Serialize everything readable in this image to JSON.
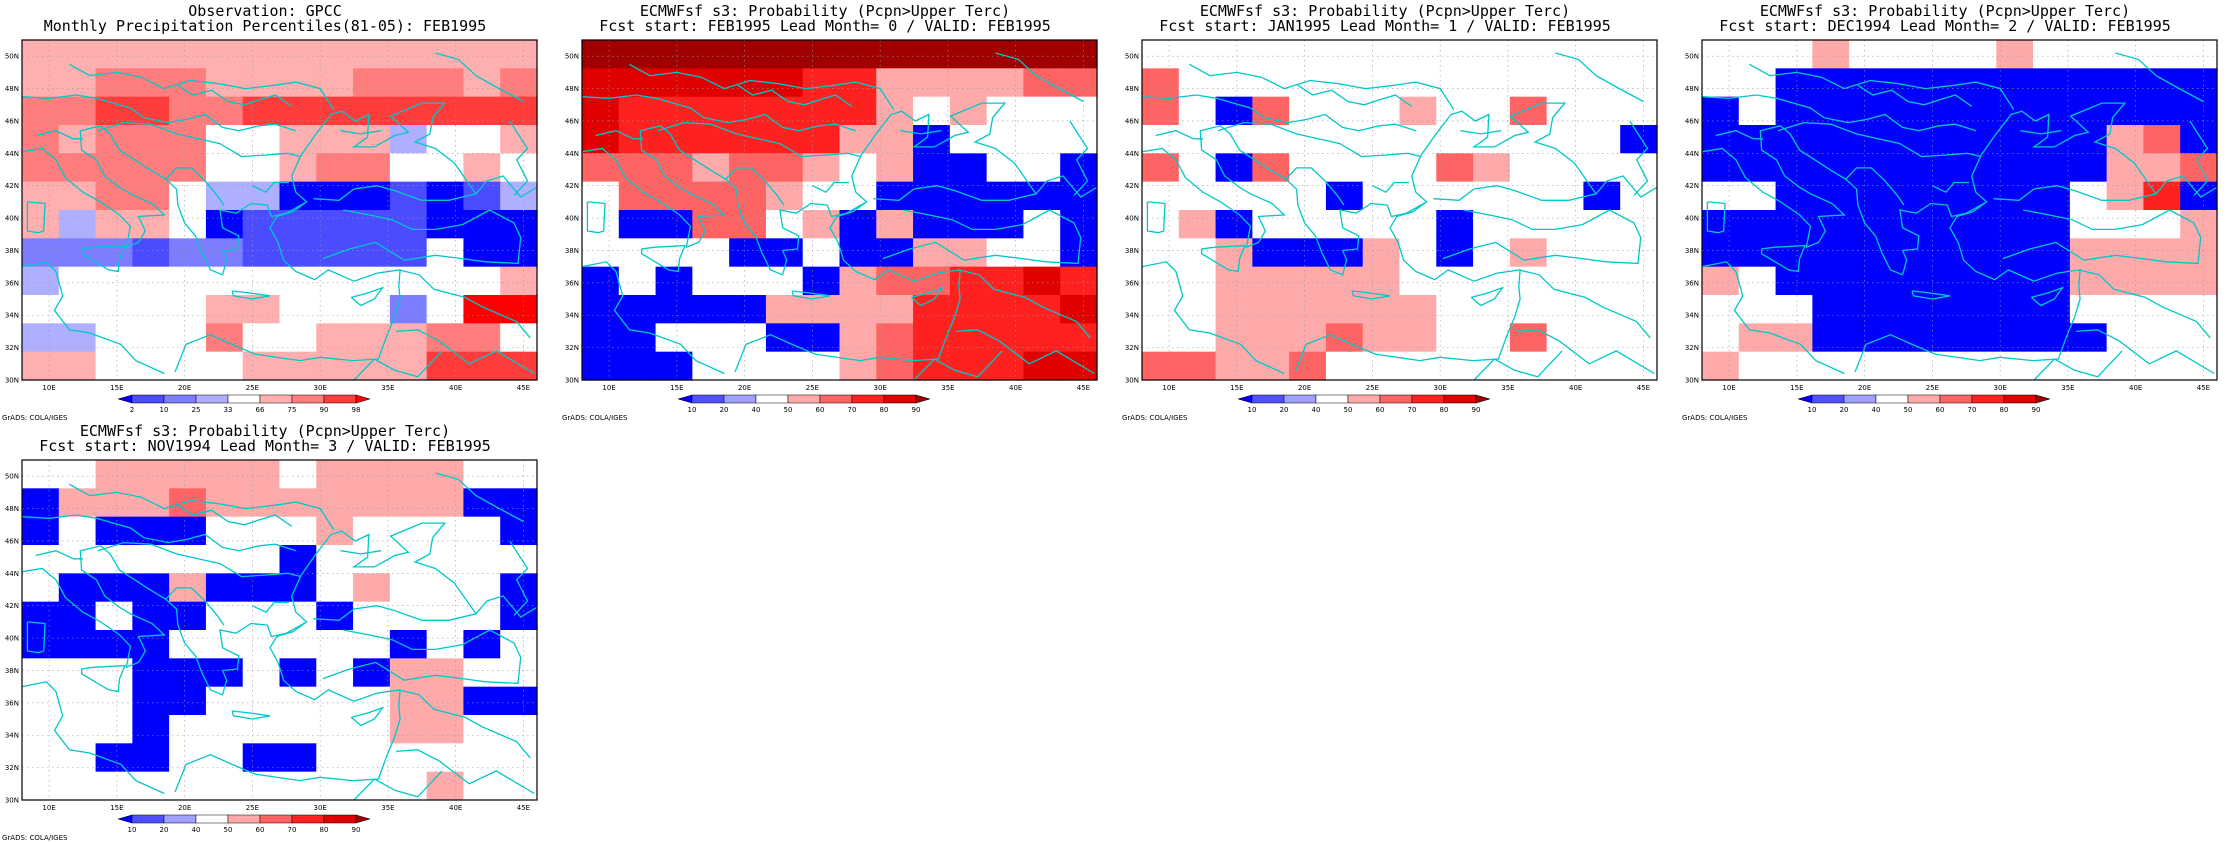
{
  "colors": {
    "obs": [
      "#0000ff",
      "#4b4bff",
      "#7d7dff",
      "#afafff",
      "#ffffff",
      "#ffafaf",
      "#ff7d7d",
      "#ff3c3c",
      "#ff0000"
    ],
    "prob": [
      "#0000ff",
      "#5050ff",
      "#a0a0ff",
      "#ffffff",
      "#ffaaaa",
      "#ff6464",
      "#ff2020",
      "#e00000",
      "#a00000"
    ],
    "coast": "#00c8c8"
  },
  "axes": {
    "lat_labels": [
      "30N",
      "32N",
      "34N",
      "36N",
      "38N",
      "40N",
      "42N",
      "44N",
      "46N",
      "48N",
      "50N"
    ],
    "lon_labels": [
      "10E",
      "15E",
      "20E",
      "25E",
      "30E",
      "35E",
      "40E",
      "45E"
    ]
  },
  "credit": "GrADS: COLA/IGES",
  "colorbars": {
    "obs": [
      "2",
      "10",
      "25",
      "33",
      "66",
      "75",
      "90",
      "98"
    ],
    "prob": [
      "10",
      "20",
      "40",
      "50",
      "60",
      "70",
      "80",
      "90"
    ]
  },
  "panels": [
    {
      "title1": "Observation: GPCC",
      "title2": "Monthly Precipitation Percentiles(81-05): FEB1995",
      "scale": "obs",
      "grid": [
        "55555555555555",
        "556665555666565",
        "667766777777777",
        "656664455534456",
        "666664456644541",
        "556643300010135",
        "535540111110001",
        "222122111114004",
        "344444444444453",
        "44444554442488",
        "33444644555664",
        "55444455555777"
      ]
    },
    {
      "title1": "ECMWFsf s3: Probability (Pcpn>Upper Terc)",
      "title2": "Fcst start: FEB1995  Lead Month= 0 / VALID: FEB1995",
      "scale": "prob",
      "grid": [
        "88888888888888",
        "77777766444455",
        "76666666434333",
        "76666664403333",
        "55545543400330",
        "35555433000000",
        "30055340400030",
        "33330030044330",
        "03033304556676",
        "00000444466667",
        "00333004566666",
        "00033334566677"
      ]
    },
    {
      "title1": "ECMWFsf s3: Probability (Pcpn>Upper Terc)",
      "title2": "Fcst start: JAN1995  Lead Month= 1 / VALID: FEB1995",
      "scale": "prob",
      "grid": [
        "33333333333333",
        "53333333333333",
        "53053334335333",
        "33333333333330",
        "53053333543333",
        "33333033333303",
        "34033333033333",
        "33400043034333",
        "33444443333333",
        "33444444333333",
        "33444544335333",
        "55445333333333"
      ]
    },
    {
      "title1": "ECMWFsf s3: Probability (Pcpn>Upper Terc)",
      "title2": "Fcst start: DEC1994  Lead Month= 2 / VALID: FEB1995",
      "scale": "prob",
      "grid": [
        "33343333433333",
        "33000000000000",
        "03000000000000",
        "00000000000450",
        "00000000000445",
        "33000000003460",
        "00000000003334",
        "00000000004444",
        "43000000004444",
        "33300000003333",
        "34400000000333",
        "43333333333333"
      ]
    },
    {
      "title1": "ECMWFsf s3: Probability (Pcpn>Upper Terc)",
      "title2": "Fcst start: NOV1994  Lead Month= 3 / VALID: FEB1995",
      "scale": "prob",
      "grid": [
        "33444443444433",
        "04445444444400",
        "03000333433330",
        "33333330333333",
        "30004000343330",
        "00300333033330",
        "00003333330303",
        "33300030304433",
        "33300333334400",
        "33303333334433",
        "33003300333333",
        "33333333333433"
      ]
    }
  ]
}
